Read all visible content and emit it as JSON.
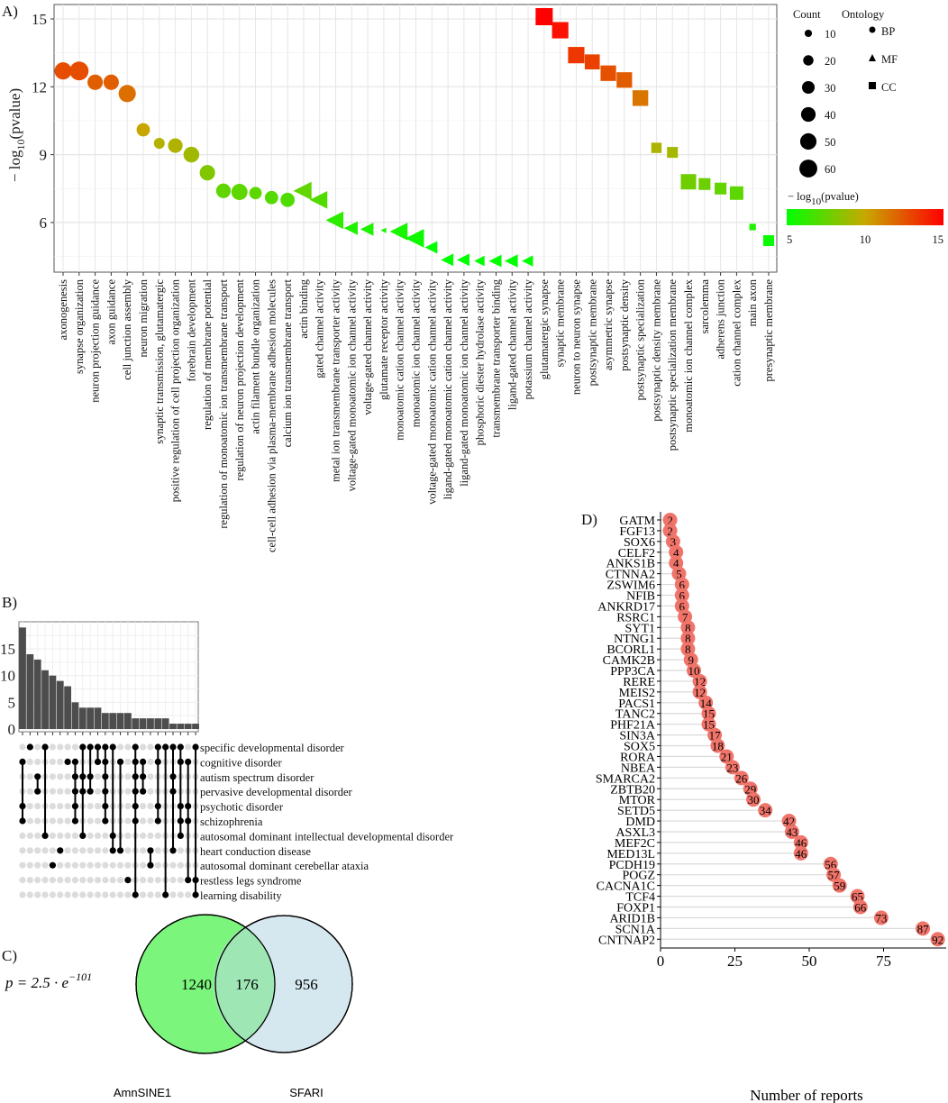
{
  "chart_data": [
    {
      "panel": "A)",
      "type": "scatter",
      "ylabel": "− log10(pvalue)",
      "ylabel_main": "− log",
      "ylabel_sub": "10",
      "ylabel_tail": "(pvalue)",
      "ylim": [
        3.8,
        15.6
      ],
      "yticks": [
        6,
        9,
        12,
        15
      ],
      "grid": true,
      "legend": {
        "count_title": "Count",
        "count_values": [
          10,
          20,
          30,
          40,
          50,
          60
        ],
        "ontology_title": "Ontology",
        "ontology": [
          {
            "label": "BP",
            "shape": "circle"
          },
          {
            "label": "MF",
            "shape": "triangle"
          },
          {
            "label": "CC",
            "shape": "square"
          }
        ],
        "color_title_main": "− log",
        "color_title_sub": "10",
        "color_title_tail": "(pvalue)",
        "color_ticks": [
          5,
          10,
          15
        ],
        "color_low": "#00ff00",
        "color_mid": "#c8a800",
        "color_high": "#ff0000"
      },
      "points": [
        {
          "term": "axonogenesis",
          "ont": "BP",
          "y": 12.7,
          "count": 50
        },
        {
          "term": "synapse organization",
          "ont": "BP",
          "y": 12.7,
          "count": 60
        },
        {
          "term": "neuron projection guidance",
          "ont": "BP",
          "y": 12.2,
          "count": 40
        },
        {
          "term": "axon guidance",
          "ont": "BP",
          "y": 12.2,
          "count": 40
        },
        {
          "term": "cell junction assembly",
          "ont": "BP",
          "y": 11.7,
          "count": 50
        },
        {
          "term": "neuron migration",
          "ont": "BP",
          "y": 10.1,
          "count": 30
        },
        {
          "term": "synaptic transmission, glutamatergic",
          "ont": "BP",
          "y": 9.5,
          "count": 20
        },
        {
          "term": "positive regulation of cell projection organization",
          "ont": "BP",
          "y": 9.4,
          "count": 36
        },
        {
          "term": "forebrain development",
          "ont": "BP",
          "y": 9.0,
          "count": 42
        },
        {
          "term": "regulation of membrane potential",
          "ont": "BP",
          "y": 8.2,
          "count": 40
        },
        {
          "term": "regulation of monoatomic ion transmembrane transport",
          "ont": "BP",
          "y": 7.4,
          "count": 36
        },
        {
          "term": "regulation of neuron projection development",
          "ont": "BP",
          "y": 7.35,
          "count": 44
        },
        {
          "term": "actin filament bundle organization",
          "ont": "BP",
          "y": 7.3,
          "count": 26
        },
        {
          "term": "cell-cell adhesion via plasma-membrane adhesion molecules",
          "ont": "BP",
          "y": 7.1,
          "count": 30
        },
        {
          "term": "calcium ion transmembrane transport",
          "ont": "BP",
          "y": 7.0,
          "count": 34
        },
        {
          "term": "actin binding",
          "ont": "MF",
          "y": 7.4,
          "count": 42
        },
        {
          "term": "gated channel activity",
          "ont": "MF",
          "y": 7.0,
          "count": 40
        },
        {
          "term": "metal ion transmembrane transporter activity",
          "ont": "MF",
          "y": 6.1,
          "count": 40
        },
        {
          "term": "voltage-gated monoatomic ion channel activity",
          "ont": "MF",
          "y": 5.75,
          "count": 24
        },
        {
          "term": "voltage-gated channel activity",
          "ont": "MF",
          "y": 5.7,
          "count": 22
        },
        {
          "term": "glutamate receptor activity",
          "ont": "MF",
          "y": 5.65,
          "count": 4
        },
        {
          "term": "monoatomic cation channel activity",
          "ont": "MF",
          "y": 5.6,
          "count": 40
        },
        {
          "term": "monoatomic ion channel activity",
          "ont": "MF",
          "y": 5.3,
          "count": 44
        },
        {
          "term": "voltage-gated monoatomic cation channel activity",
          "ont": "MF",
          "y": 4.9,
          "count": 20
        },
        {
          "term": "ligand-gated monoatomic cation channel activity",
          "ont": "MF",
          "y": 4.35,
          "count": 20
        },
        {
          "term": "ligand-gated monoatomic ion channel activity",
          "ont": "MF",
          "y": 4.35,
          "count": 20
        },
        {
          "term": "phosphoric diester hydrolase activity",
          "ont": "MF",
          "y": 4.3,
          "count": 14
        },
        {
          "term": "transmembrane transporter binding",
          "ont": "MF",
          "y": 4.3,
          "count": 20
        },
        {
          "term": "ligand-gated channel activity",
          "ont": "MF",
          "y": 4.3,
          "count": 22
        },
        {
          "term": "potassium channel activity",
          "ont": "MF",
          "y": 4.3,
          "count": 16
        },
        {
          "term": "glutamatergic synapse",
          "ont": "CC",
          "y": 15.1,
          "count": 55
        },
        {
          "term": "synaptic membrane",
          "ont": "CC",
          "y": 14.5,
          "count": 50
        },
        {
          "term": "neuron to neuron synapse",
          "ont": "CC",
          "y": 13.4,
          "count": 50
        },
        {
          "term": "postsynaptic membrane",
          "ont": "CC",
          "y": 13.1,
          "count": 42
        },
        {
          "term": "asymmetric synapse",
          "ont": "CC",
          "y": 12.6,
          "count": 45
        },
        {
          "term": "postsynaptic density",
          "ont": "CC",
          "y": 12.3,
          "count": 45
        },
        {
          "term": "postsynaptic specialization",
          "ont": "CC",
          "y": 11.5,
          "count": 46
        },
        {
          "term": "postsynaptic density membrane",
          "ont": "CC",
          "y": 9.3,
          "count": 20
        },
        {
          "term": "postsynaptic specialization membrane",
          "ont": "CC",
          "y": 9.1,
          "count": 22
        },
        {
          "term": "monoatomic ion channel complex",
          "ont": "CC",
          "y": 7.8,
          "count": 44
        },
        {
          "term": "sarcolemma",
          "ont": "CC",
          "y": 7.7,
          "count": 26
        },
        {
          "term": "adherens junction",
          "ont": "CC",
          "y": 7.5,
          "count": 26
        },
        {
          "term": "cation channel complex",
          "ont": "CC",
          "y": 7.3,
          "count": 34
        },
        {
          "term": "main axon",
          "ont": "CC",
          "y": 5.8,
          "count": 8
        },
        {
          "term": "presynaptic membrane",
          "ont": "CC",
          "y": 5.2,
          "count": 22
        }
      ]
    },
    {
      "panel": "B)",
      "type": "upset",
      "yticks": [
        0,
        5,
        10,
        15
      ],
      "ylim": [
        0,
        19.5
      ],
      "sets": [
        "specific developmental disorder",
        "cognitive disorder",
        "autism spectrum disorder",
        "pervasive developmental disorder",
        "psychotic disorder",
        "schizophrenia",
        "autosomal dominant intellectual developmental disorder",
        "heart conduction disease",
        "autosomal dominant cerebellar ataxia",
        "restless legs syndrome",
        "learning disability"
      ],
      "values": [
        19,
        14,
        13,
        11,
        10,
        9,
        8,
        5,
        4,
        4,
        4,
        3,
        3,
        3,
        3,
        2,
        2,
        2,
        2,
        2,
        1,
        1,
        1,
        1
      ],
      "intersections": [
        [
          1,
          4,
          5
        ],
        [
          0
        ],
        [
          2,
          3
        ],
        [
          0,
          6
        ],
        [
          8
        ],
        [
          7
        ],
        [
          1
        ],
        [
          1,
          2,
          3,
          4,
          5
        ],
        [
          0,
          2,
          3,
          6
        ],
        [
          0,
          2,
          3
        ],
        [
          0,
          1
        ],
        [
          0,
          1,
          2,
          3,
          4,
          5
        ],
        [
          0,
          6,
          7
        ],
        [
          1,
          7
        ],
        [
          9
        ],
        [
          0,
          1,
          2,
          3,
          4,
          5,
          10
        ],
        [
          1,
          2,
          3
        ],
        [
          7,
          8
        ],
        [
          0,
          1,
          4,
          5
        ],
        [
          0,
          10
        ],
        [
          0,
          2,
          3,
          7
        ],
        [
          0,
          1,
          4,
          5,
          6
        ],
        [
          1,
          4,
          5,
          9
        ],
        [
          0,
          9,
          10
        ]
      ]
    },
    {
      "panel": "C)",
      "type": "venn",
      "sets": [
        {
          "label": "AmnSINE1",
          "only": "1240",
          "color": "#7cf57c"
        },
        {
          "label": "SFARI",
          "only": "956",
          "color": "#d6e8ef"
        }
      ],
      "overlap": "176",
      "overlap_color": "#9ee6b4",
      "pvalue_main": "p = 2.5 · e",
      "pvalue_exp": "−101"
    },
    {
      "panel": "D)",
      "type": "lollipop",
      "xlabel": "Number of reports",
      "xticks": [
        0,
        25,
        50,
        75
      ],
      "xlim": [
        0,
        95
      ],
      "color": "#f0746a",
      "genes": [
        "GATM",
        "FGF13",
        "SOX6",
        "CELF2",
        "ANKS1B",
        "CTNNA2",
        "ZSWIM6",
        "NFIB",
        "ANKRD17",
        "RSRC1",
        "SYT1",
        "NTNG1",
        "BCORL1",
        "CAMK2B",
        "PPP3CA",
        "RERE",
        "MEIS2",
        "PACS1",
        "TANC2",
        "PHF21A",
        "SIN3A",
        "SOX5",
        "RORA",
        "NBEA",
        "SMARCA2",
        "ZBTB20",
        "MTOR",
        "SETD5",
        "DMD",
        "ASXL3",
        "MEF2C",
        "MED13L",
        "PCDH19",
        "POGZ",
        "CACNA1C",
        "TCF4",
        "FOXP1",
        "ARID1B",
        "SCN1A",
        "CNTNAP2"
      ],
      "values": [
        2,
        2,
        3,
        4,
        4,
        5,
        6,
        6,
        6,
        7,
        8,
        8,
        8,
        9,
        10,
        12,
        12,
        14,
        15,
        15,
        17,
        18,
        21,
        23,
        26,
        29,
        30,
        34,
        42,
        43,
        46,
        46,
        56,
        57,
        59,
        65,
        66,
        73,
        87,
        92
      ]
    }
  ]
}
